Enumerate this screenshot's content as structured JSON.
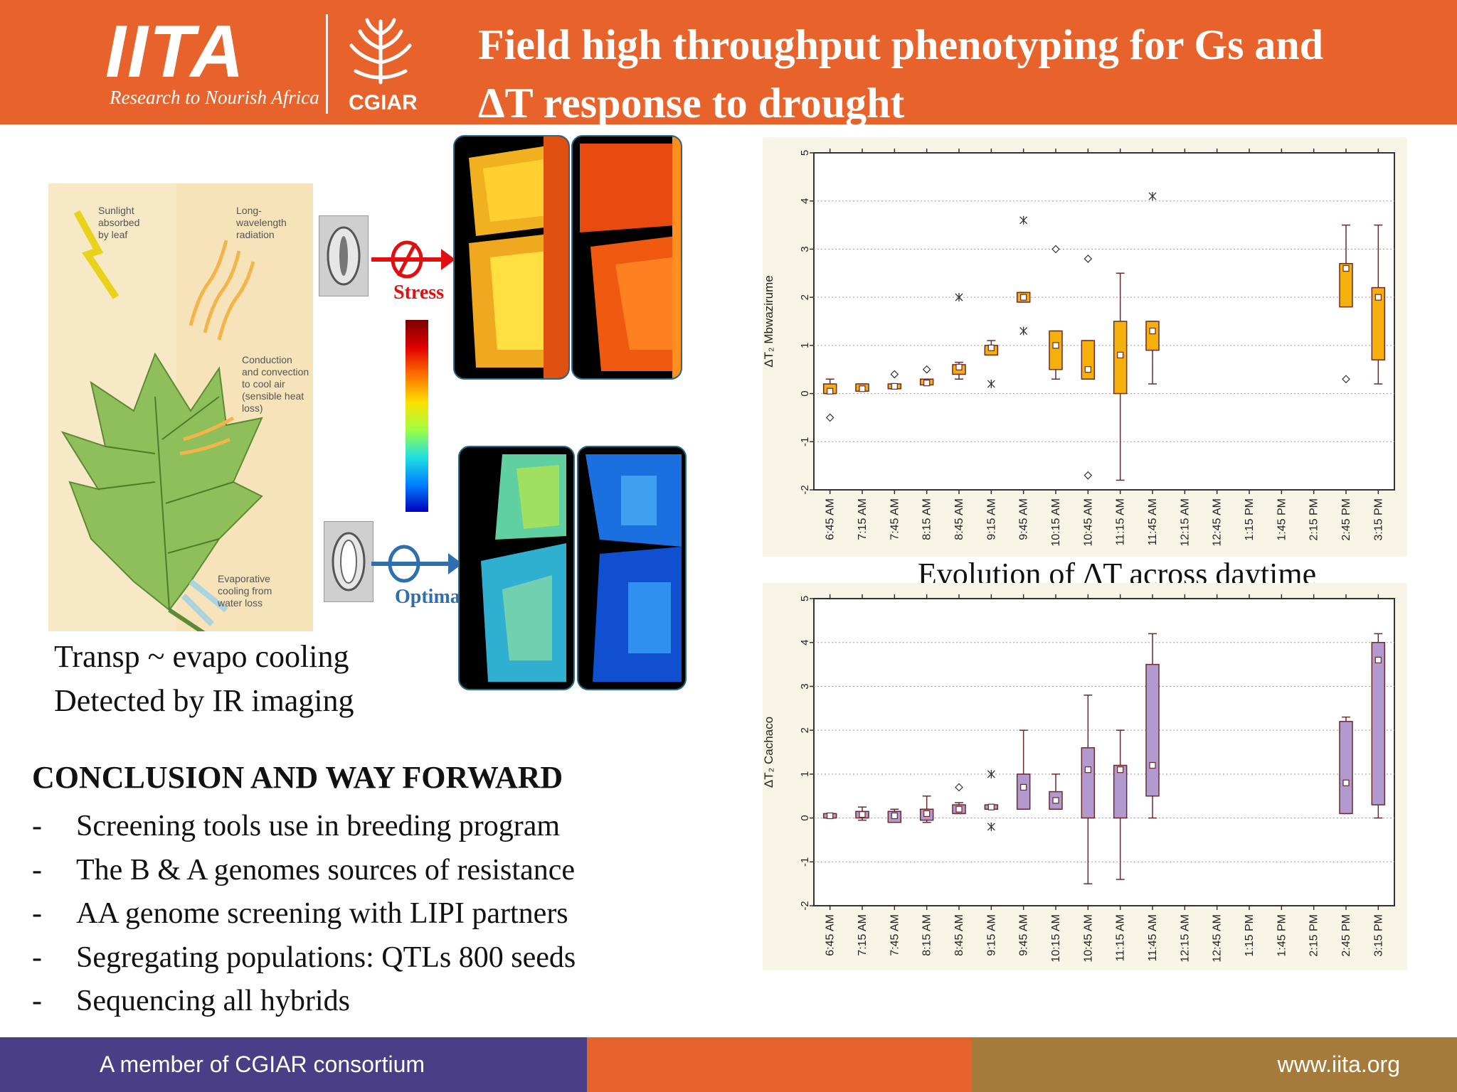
{
  "header": {
    "logo_word": "IITA",
    "logo_tagline": "Research to Nourish Africa",
    "cgiar_label": "CGIAR",
    "title_line1": "Field high throughput phenotyping for Gs and",
    "title_line2": "ΔT response to drought",
    "colors": {
      "band": "#e8622c",
      "text": "#ffffff"
    }
  },
  "illustration": {
    "labels": {
      "sunlight": "Sunlight absorbed by leaf",
      "longwave": "Long-wavelength radiation",
      "conduction": "Conduction and convection to cool air (sensible heat loss)",
      "evaporative": "Evaporative cooling from water loss"
    },
    "stress_label": "Stress",
    "optimal_label": "Optimal",
    "caption_line1": "Transp ~ evapo cooling",
    "caption_line2": "Detected by IR imaging"
  },
  "conclusion": {
    "title": "CONCLUSION AND WAY FORWARD",
    "bullet": "-",
    "items": [
      "Screening tools use in breeding program",
      "The B & A genomes sources of  resistance",
      "AA genome screening with LIPI partners",
      "Segregating populations: QTLs 800 seeds",
      "Sequencing all hybrids"
    ]
  },
  "charts_caption": "Evolution of ΔT across daytime",
  "chart_data": [
    {
      "type": "box",
      "ylabel": "ΔT₂ Mbwazirume",
      "ylim": [
        -2,
        5
      ],
      "yticks": [
        -2,
        -1,
        0,
        1,
        2,
        3,
        4,
        5
      ],
      "grid": true,
      "color": "#f5b00b",
      "categories": [
        "6:45 AM",
        "7:15 AM",
        "7:45 AM",
        "8:15 AM",
        "8:45 AM",
        "9:15 AM",
        "9:45 AM",
        "10:15 AM",
        "10:45 AM",
        "11:15 AM",
        "11:45 AM",
        "12:15 AM",
        "12:45 AM",
        "1:15 PM",
        "1:45 PM",
        "2:15 PM",
        "2:45 PM",
        "3:15 PM"
      ],
      "boxes": [
        {
          "q1": 0,
          "q3": 0.2,
          "median": 0.05,
          "wlo": 0,
          "whi": 0.3,
          "outliers": [
            -0.5
          ],
          "extremes": []
        },
        {
          "q1": 0.05,
          "q3": 0.2,
          "median": 0.1,
          "wlo": 0.05,
          "whi": 0.2,
          "outliers": [],
          "extremes": []
        },
        {
          "q1": 0.1,
          "q3": 0.2,
          "median": 0.15,
          "wlo": 0.1,
          "whi": 0.2,
          "outliers": [
            0.4
          ],
          "extremes": []
        },
        {
          "q1": 0.18,
          "q3": 0.3,
          "median": 0.22,
          "wlo": 0.18,
          "whi": 0.3,
          "outliers": [
            0.5
          ],
          "extremes": []
        },
        {
          "q1": 0.4,
          "q3": 0.6,
          "median": 0.55,
          "wlo": 0.3,
          "whi": 0.65,
          "outliers": [],
          "extremes": [
            2.0
          ]
        },
        {
          "q1": 0.8,
          "q3": 1.0,
          "median": 0.95,
          "wlo": 0.8,
          "whi": 1.1,
          "outliers": [],
          "extremes": [
            0.2
          ]
        },
        {
          "q1": 1.9,
          "q3": 2.1,
          "median": 2.0,
          "wlo": 1.9,
          "whi": 2.1,
          "outliers": [],
          "extremes": [
            3.6,
            1.3
          ]
        },
        {
          "q1": 0.5,
          "q3": 1.3,
          "median": 1.0,
          "wlo": 0.3,
          "whi": 1.3,
          "outliers": [
            3.0
          ],
          "extremes": []
        },
        {
          "q1": 0.3,
          "q3": 1.1,
          "median": 0.5,
          "wlo": 0.3,
          "whi": 1.1,
          "outliers": [
            2.8,
            -1.7
          ],
          "extremes": []
        },
        {
          "q1": 0.0,
          "q3": 1.5,
          "median": 0.8,
          "wlo": -1.8,
          "whi": 2.5,
          "outliers": [],
          "extremes": []
        },
        {
          "q1": 0.9,
          "q3": 1.5,
          "median": 1.3,
          "wlo": 0.2,
          "whi": 1.5,
          "outliers": [],
          "extremes": [
            4.1
          ]
        },
        null,
        null,
        null,
        null,
        null,
        {
          "q1": 1.8,
          "q3": 2.7,
          "median": 2.6,
          "wlo": 1.8,
          "whi": 3.5,
          "outliers": [
            0.3
          ],
          "extremes": []
        },
        {
          "q1": 0.7,
          "q3": 2.2,
          "median": 2.0,
          "wlo": 0.2,
          "whi": 3.5,
          "outliers": [],
          "extremes": []
        }
      ]
    },
    {
      "type": "box",
      "ylabel": "ΔT₂ Cachaco",
      "ylim": [
        -2,
        5
      ],
      "yticks": [
        -2,
        -1,
        0,
        1,
        2,
        3,
        4,
        5
      ],
      "grid": true,
      "color": "#b29ad0",
      "categories": [
        "6:45 AM",
        "7:15 AM",
        "7:45 AM",
        "8:15 AM",
        "8:45 AM",
        "9:15 AM",
        "9:45 AM",
        "10:15 AM",
        "10:45 AM",
        "11:15 AM",
        "11:45 AM",
        "12:15 AM",
        "12:45 AM",
        "1:15 PM",
        "1:45 PM",
        "2:15 PM",
        "2:45 PM",
        "3:15 PM"
      ],
      "boxes": [
        {
          "q1": 0,
          "q3": 0.1,
          "median": 0.05,
          "wlo": 0,
          "whi": 0.1,
          "outliers": [],
          "extremes": []
        },
        {
          "q1": 0,
          "q3": 0.15,
          "median": 0.08,
          "wlo": -0.05,
          "whi": 0.25,
          "outliers": [],
          "extremes": []
        },
        {
          "q1": -0.1,
          "q3": 0.15,
          "median": 0.05,
          "wlo": -0.1,
          "whi": 0.2,
          "outliers": [],
          "extremes": []
        },
        {
          "q1": -0.05,
          "q3": 0.2,
          "median": 0.1,
          "wlo": -0.1,
          "whi": 0.5,
          "outliers": [],
          "extremes": []
        },
        {
          "q1": 0.1,
          "q3": 0.3,
          "median": 0.2,
          "wlo": 0.1,
          "whi": 0.35,
          "outliers": [
            0.7
          ],
          "extremes": []
        },
        {
          "q1": 0.2,
          "q3": 0.3,
          "median": 0.25,
          "wlo": 0.2,
          "whi": 0.3,
          "outliers": [],
          "extremes": [
            1.0,
            -0.2
          ]
        },
        {
          "q1": 0.2,
          "q3": 1.0,
          "median": 0.7,
          "wlo": 0.2,
          "whi": 2.0,
          "outliers": [],
          "extremes": []
        },
        {
          "q1": 0.2,
          "q3": 0.6,
          "median": 0.4,
          "wlo": 0.2,
          "whi": 1.0,
          "outliers": [],
          "extremes": []
        },
        {
          "q1": 0,
          "q3": 1.6,
          "median": 1.1,
          "wlo": -1.5,
          "whi": 2.8,
          "outliers": [],
          "extremes": []
        },
        {
          "q1": 0,
          "q3": 1.2,
          "median": 1.1,
          "wlo": -1.4,
          "whi": 2.0,
          "outliers": [],
          "extremes": []
        },
        {
          "q1": 0.5,
          "q3": 3.5,
          "median": 1.2,
          "wlo": 0,
          "whi": 4.2,
          "outliers": [],
          "extremes": []
        },
        null,
        null,
        null,
        null,
        null,
        {
          "q1": 0.1,
          "q3": 2.2,
          "median": 0.8,
          "wlo": 0.1,
          "whi": 2.3,
          "outliers": [],
          "extremes": []
        },
        {
          "q1": 0.3,
          "q3": 4.0,
          "median": 3.6,
          "wlo": 0,
          "whi": 4.2,
          "outliers": [],
          "extremes": []
        }
      ]
    }
  ],
  "footer": {
    "left_text": "A member of CGIAR consortium",
    "right_text": "www.iita.org",
    "colors": {
      "left": "#4a3f86",
      "middle": "#e8622c",
      "right": "#a57a3b"
    }
  }
}
